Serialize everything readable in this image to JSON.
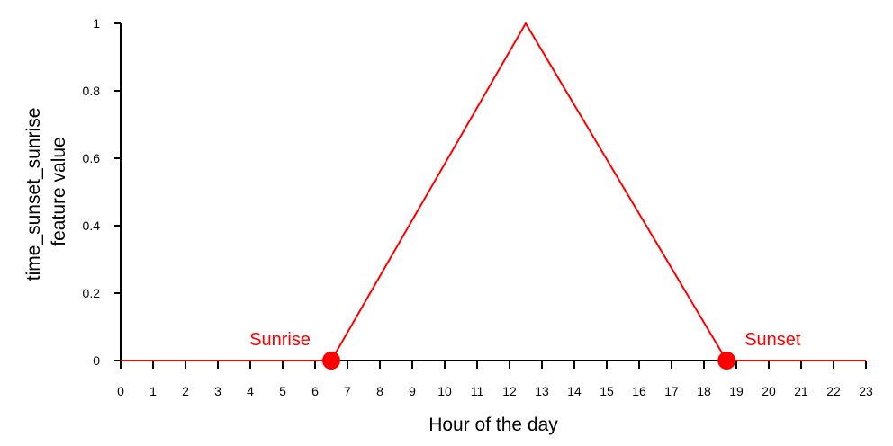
{
  "chart_data": {
    "type": "line",
    "title": "",
    "xlabel": "Hour of the day",
    "ylabel_lines": [
      "time_sunset_sunrise",
      "feature value"
    ],
    "xlim": [
      0,
      23
    ],
    "ylim": [
      0,
      1
    ],
    "x_ticks": [
      "0",
      "1",
      "2",
      "3",
      "4",
      "5",
      "6",
      "7",
      "8",
      "9",
      "10",
      "11",
      "12",
      "13",
      "14",
      "15",
      "16",
      "17",
      "18",
      "19",
      "20",
      "21",
      "22",
      "23"
    ],
    "y_ticks": [
      "0",
      "0.2",
      "0.4",
      "0.6",
      "0.8",
      "1"
    ],
    "grid": false,
    "legend": "none",
    "series": [
      {
        "color": "#ff0000",
        "points": [
          [
            0,
            0
          ],
          [
            6.5,
            0
          ],
          [
            12.5,
            1
          ],
          [
            18.7,
            0
          ],
          [
            23,
            0
          ]
        ]
      }
    ],
    "markers": [
      {
        "x": 6.5,
        "y": 0,
        "label": "Sunrise"
      },
      {
        "x": 18.7,
        "y": 0,
        "label": "Sunset"
      }
    ],
    "axis_color": "#000000",
    "accent_color": "#ff0000"
  }
}
